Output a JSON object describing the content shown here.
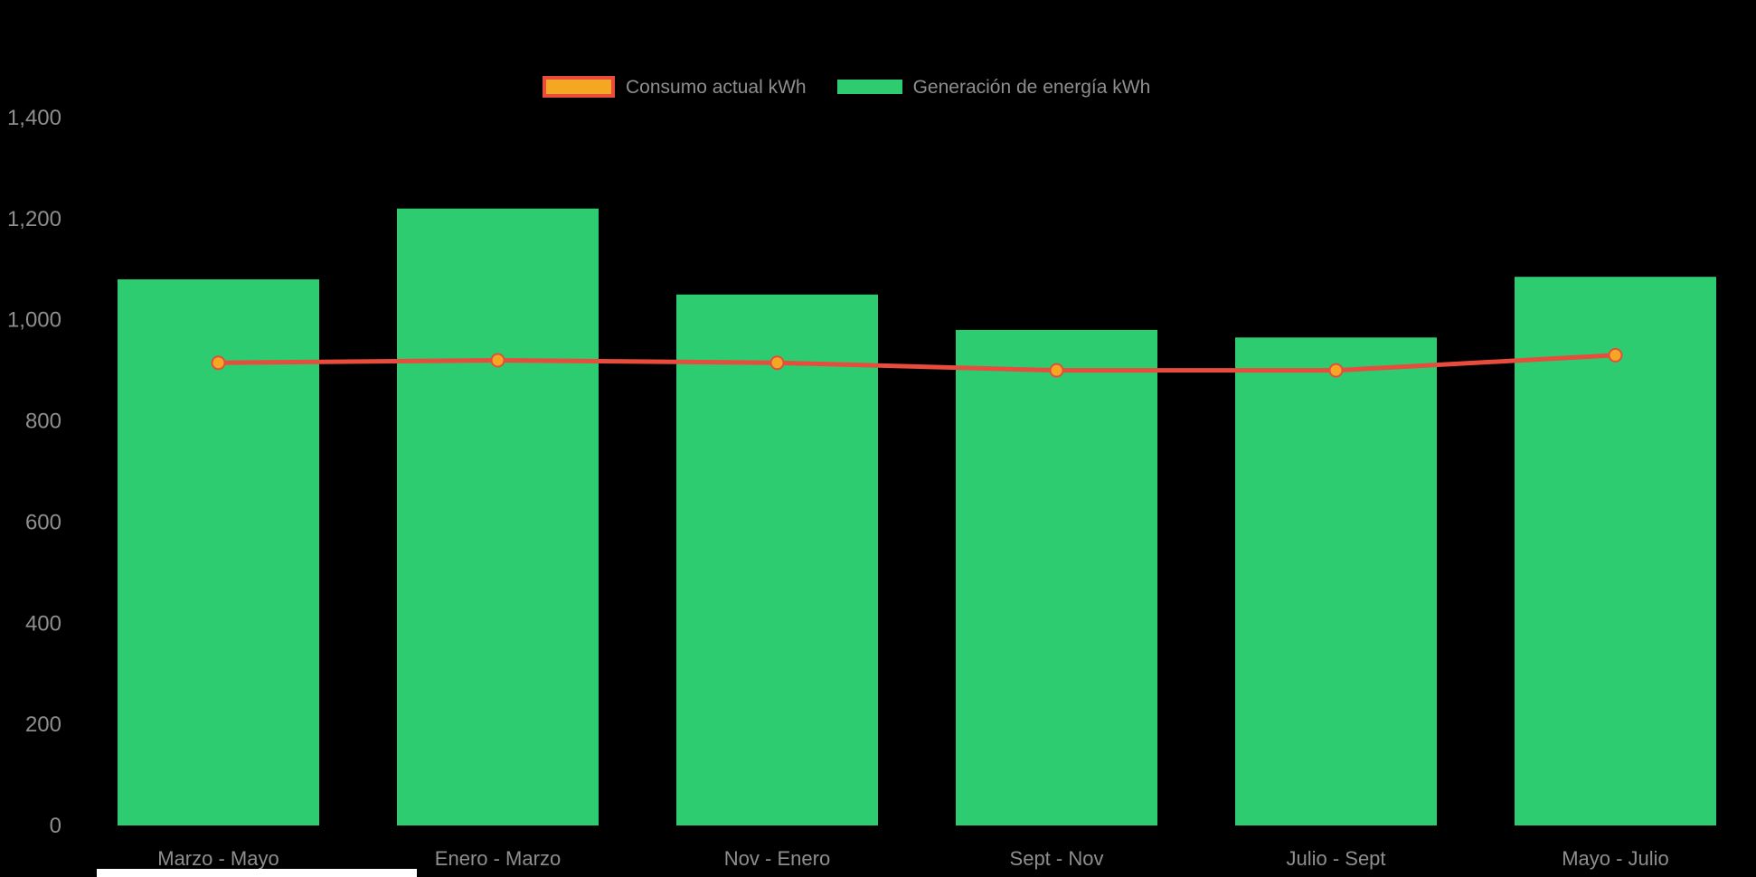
{
  "page": {
    "background": "#000000",
    "text_color": "#8E8E8E"
  },
  "chart_data": {
    "type": "bar",
    "title": "",
    "xlabel": "",
    "ylabel": "",
    "categories": [
      "Marzo - Mayo",
      "Enero - Marzo",
      "Nov - Enero",
      "Sept - Nov",
      "Julio - Sept",
      "Mayo - Julio"
    ],
    "series": [
      {
        "name": "Consumo actual kWh",
        "type": "line",
        "color": "#E74C3C",
        "point_color": "#F5A623",
        "values": [
          915,
          920,
          915,
          900,
          900,
          930
        ]
      },
      {
        "name": "Generación de energía kWh",
        "type": "bar",
        "color": "#2ECC71",
        "values": [
          1080,
          1220,
          1050,
          980,
          965,
          1085
        ]
      }
    ],
    "ylim": [
      0,
      1400
    ],
    "yticks": [
      0,
      200,
      400,
      600,
      800,
      1000,
      1200,
      1400
    ],
    "grid": false,
    "legend_position": "top",
    "background": "#000000",
    "text_color": "#8E8E8E"
  }
}
